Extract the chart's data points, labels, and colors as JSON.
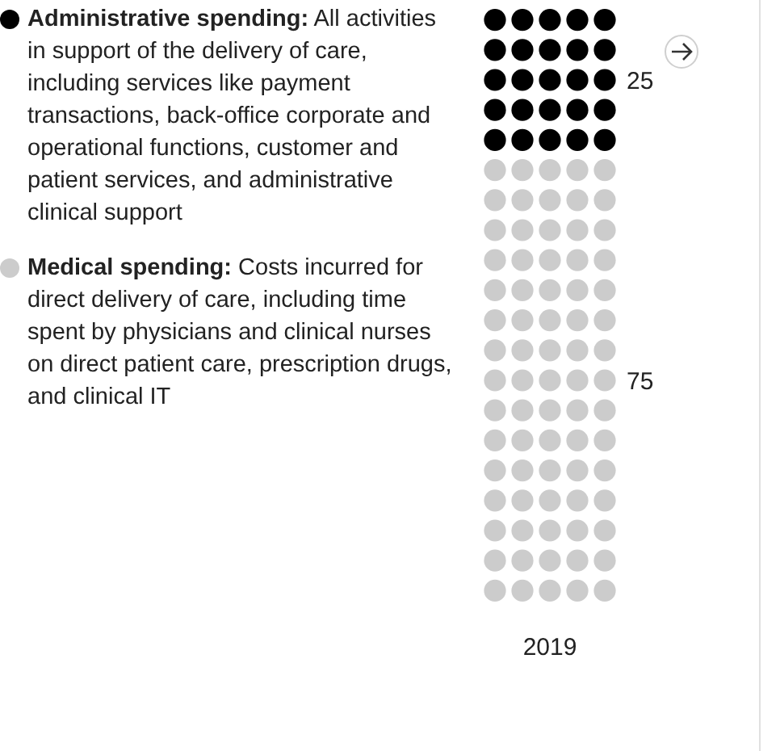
{
  "chart_data": {
    "type": "other",
    "categories": [
      "2019"
    ],
    "series": [
      {
        "name": "Medical spending: Costs incurred for direct delivery of care, including time spent by physicians and clinical nurses on direct patient care, prescription drugs, and clinical IT",
        "color": "#cccccc",
        "values": [
          75
        ]
      },
      {
        "name": "Administrative spending: All activities in support of the delivery of care, including services like payment transactions, back-office corporate and operational functions, customer and patient services, and administrative clinical support",
        "color": "#000000",
        "values": [
          25
        ]
      }
    ],
    "data_labels": true,
    "legend": "left"
  }
}
